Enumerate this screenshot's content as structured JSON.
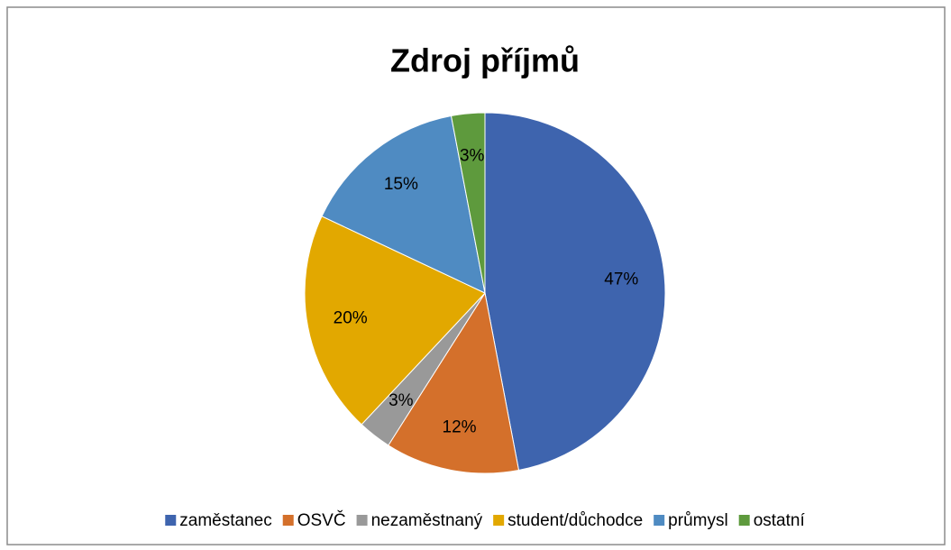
{
  "chart_data": {
    "type": "pie",
    "title": "Zdroj příjmů",
    "categories": [
      "zaměstanec",
      "OSVČ",
      "nezaměstnaný",
      "student/důchodce",
      "průmysl",
      "ostatní"
    ],
    "values": [
      47,
      12,
      3,
      20,
      15,
      3
    ],
    "value_labels": [
      "47%",
      "12%",
      "3%",
      "20%",
      "15%",
      "3%"
    ],
    "colors": [
      "#3e64ae",
      "#d4702b",
      "#999999",
      "#e2a800",
      "#4f8bc2",
      "#5e9a3d"
    ],
    "legend": "bottom"
  }
}
